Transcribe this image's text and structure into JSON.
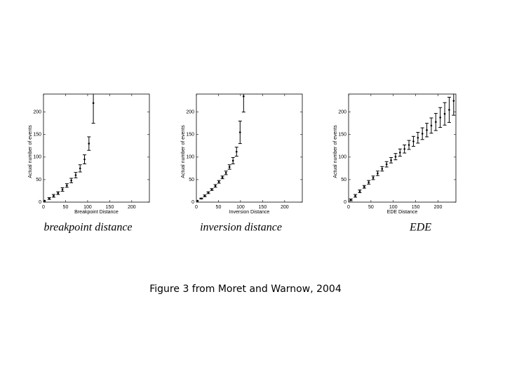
{
  "chart_data": [
    {
      "type": "errorbar",
      "subtitle": "breakpoint distance",
      "xlabel": "Breakpoint Distance",
      "ylabel": "Actual number of events",
      "x": [
        3,
        13,
        23,
        33,
        43,
        53,
        63,
        73,
        83,
        93,
        103,
        113
      ],
      "values": [
        3,
        8,
        14,
        20,
        28,
        37,
        48,
        60,
        75,
        95,
        130,
        220
      ],
      "errors": [
        2,
        2,
        3,
        3,
        4,
        4,
        5,
        6,
        8,
        10,
        15,
        45
      ],
      "color": "#000000",
      "xlim": [
        0,
        240
      ],
      "ylim": [
        0,
        240
      ],
      "xticks": [
        0,
        50,
        100,
        150,
        200
      ],
      "yticks": [
        0,
        50,
        100,
        150,
        200
      ]
    },
    {
      "type": "errorbar",
      "subtitle": "inversion distance",
      "xlabel": "Inversion Distance",
      "ylabel": "Actual number of events",
      "x": [
        3,
        11,
        19,
        27,
        35,
        43,
        51,
        59,
        67,
        75,
        83,
        91,
        99,
        107
      ],
      "values": [
        3,
        8,
        14,
        21,
        28,
        36,
        45,
        55,
        65,
        78,
        92,
        112,
        155,
        235
      ],
      "errors": [
        1,
        1,
        2,
        2,
        2,
        3,
        3,
        3,
        4,
        5,
        7,
        10,
        25,
        35
      ],
      "color": "#000000",
      "xlim": [
        0,
        240
      ],
      "ylim": [
        0,
        240
      ],
      "xticks": [
        0,
        50,
        100,
        150,
        200
      ],
      "yticks": [
        0,
        50,
        100,
        150,
        200
      ]
    },
    {
      "type": "errorbar",
      "subtitle": "EDE",
      "xlabel": "EDE Distance",
      "ylabel": "Actual number of events",
      "x": [
        5,
        15,
        25,
        35,
        45,
        55,
        65,
        75,
        85,
        95,
        105,
        115,
        125,
        135,
        145,
        155,
        165,
        175,
        185,
        195,
        205,
        215,
        225,
        235
      ],
      "values": [
        5,
        14,
        24,
        34,
        44,
        54,
        64,
        74,
        84,
        93,
        101,
        110,
        118,
        127,
        135,
        143,
        152,
        160,
        170,
        178,
        188,
        196,
        205,
        225
      ],
      "errors": [
        2,
        3,
        3,
        3,
        4,
        4,
        5,
        5,
        6,
        6,
        7,
        8,
        9,
        10,
        11,
        12,
        13,
        15,
        17,
        19,
        22,
        25,
        28,
        32
      ],
      "color": "#000000",
      "xlim": [
        0,
        240
      ],
      "ylim": [
        0,
        240
      ],
      "xticks": [
        0,
        50,
        100,
        150,
        200
      ],
      "yticks": [
        0,
        50,
        100,
        150,
        200
      ]
    }
  ],
  "caption": "Figure 3 from Moret and Warnow, 2004"
}
